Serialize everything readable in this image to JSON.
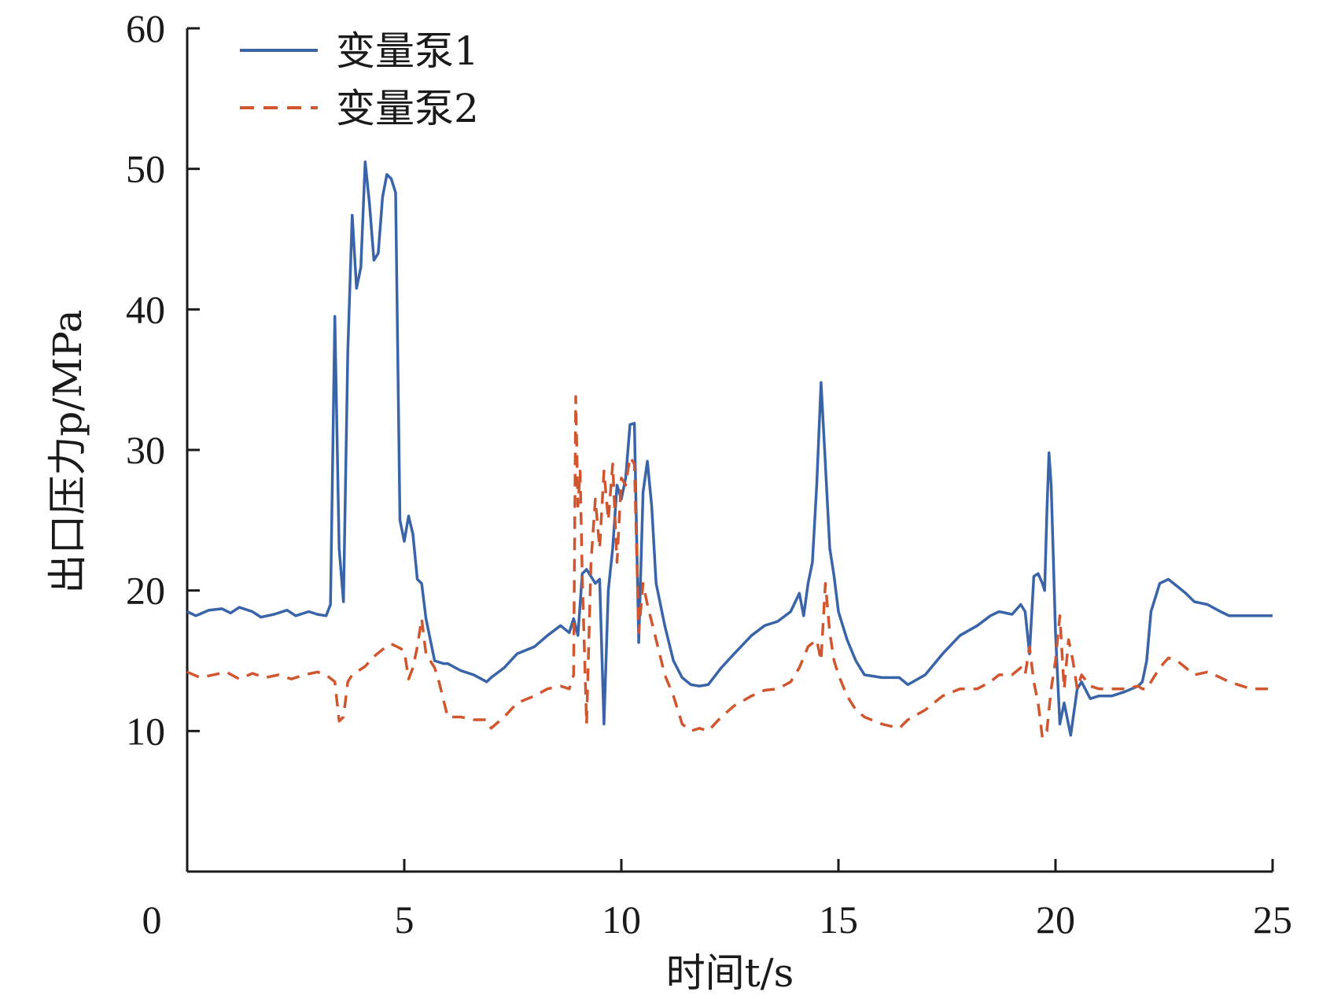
{
  "chart_data": {
    "type": "line",
    "title": "",
    "xlabel": "时间t/s",
    "ylabel": "出口压力p/MPa",
    "xlim": [
      0,
      25
    ],
    "ylim": [
      0,
      60
    ],
    "xticks": [
      "0",
      "5",
      "10",
      "15",
      "20",
      "25"
    ],
    "yticks": [
      "10",
      "20",
      "30",
      "40",
      "50",
      "60"
    ],
    "legend_position": "top-left",
    "grid": false,
    "series": [
      {
        "name": "变量泵1",
        "color": "#3a64a8",
        "dash": "solid",
        "x": [
          0,
          0.2,
          0.5,
          0.8,
          1.0,
          1.2,
          1.5,
          1.7,
          2.0,
          2.3,
          2.5,
          2.8,
          3.0,
          3.2,
          3.3,
          3.4,
          3.5,
          3.6,
          3.7,
          3.8,
          3.9,
          4.0,
          4.1,
          4.2,
          4.3,
          4.4,
          4.5,
          4.6,
          4.7,
          4.8,
          4.9,
          5.0,
          5.1,
          5.2,
          5.3,
          5.4,
          5.5,
          5.6,
          5.7,
          5.9,
          6.0,
          6.3,
          6.6,
          6.9,
          7.0,
          7.3,
          7.6,
          8.0,
          8.3,
          8.6,
          8.8,
          8.9,
          9.0,
          9.1,
          9.2,
          9.3,
          9.4,
          9.5,
          9.6,
          9.7,
          9.8,
          9.9,
          10.0,
          10.1,
          10.2,
          10.3,
          10.4,
          10.5,
          10.6,
          10.7,
          10.8,
          11.0,
          11.2,
          11.4,
          11.6,
          11.8,
          12.0,
          12.3,
          12.6,
          13.0,
          13.3,
          13.6,
          13.9,
          14.1,
          14.2,
          14.3,
          14.4,
          14.5,
          14.6,
          14.7,
          14.8,
          14.9,
          15.0,
          15.2,
          15.4,
          15.6,
          16.0,
          16.4,
          16.6,
          17.0,
          17.4,
          17.8,
          18.2,
          18.5,
          18.7,
          19.0,
          19.2,
          19.3,
          19.4,
          19.5,
          19.6,
          19.7,
          19.75,
          19.8,
          19.85,
          19.9,
          20.0,
          20.1,
          20.2,
          20.35,
          20.5,
          20.6,
          20.8,
          21.0,
          21.3,
          21.6,
          21.9,
          22.0,
          22.1,
          22.2,
          22.4,
          22.6,
          22.8,
          23.0,
          23.2,
          23.5,
          23.8,
          24.0,
          24.5,
          25.0
        ],
        "y": [
          18.5,
          18.2,
          18.6,
          18.7,
          18.4,
          18.8,
          18.5,
          18.1,
          18.3,
          18.6,
          18.2,
          18.5,
          18.3,
          18.2,
          19.0,
          39.5,
          23.0,
          19.2,
          37.0,
          46.7,
          41.5,
          43.0,
          50.5,
          47.5,
          43.5,
          44.0,
          48.0,
          49.6,
          49.3,
          48.3,
          25.0,
          23.5,
          25.3,
          24.0,
          20.8,
          20.5,
          18.0,
          16.5,
          15.0,
          14.8,
          14.8,
          14.3,
          14.0,
          13.5,
          13.8,
          14.5,
          15.5,
          16.0,
          16.8,
          17.5,
          17.0,
          18.0,
          16.8,
          21.2,
          21.5,
          21.0,
          20.5,
          20.8,
          10.5,
          20.0,
          23.0,
          27.5,
          26.5,
          28.0,
          31.8,
          31.9,
          16.3,
          27.0,
          29.2,
          26.0,
          20.5,
          17.5,
          15.0,
          13.8,
          13.3,
          13.2,
          13.3,
          14.5,
          15.5,
          16.8,
          17.5,
          17.8,
          18.5,
          19.8,
          18.2,
          20.5,
          22.0,
          27.5,
          34.8,
          29.0,
          23.0,
          21.0,
          18.5,
          16.5,
          15.0,
          14.0,
          13.8,
          13.8,
          13.3,
          14.0,
          15.5,
          16.8,
          17.5,
          18.2,
          18.5,
          18.3,
          19.0,
          18.5,
          15.5,
          21.0,
          21.2,
          20.5,
          20.0,
          25.5,
          29.8,
          27.5,
          17.0,
          10.5,
          12.0,
          9.7,
          13.0,
          13.5,
          12.3,
          12.5,
          12.5,
          12.8,
          13.2,
          13.5,
          15.0,
          18.5,
          20.5,
          20.8,
          20.3,
          19.8,
          19.2,
          19.0,
          18.5,
          18.2,
          18.2,
          18.2
        ]
      },
      {
        "name": "变量泵2",
        "color": "#d0562f",
        "dash": "dashed",
        "x": [
          0,
          0.3,
          0.6,
          0.9,
          1.2,
          1.5,
          1.8,
          2.1,
          2.4,
          2.7,
          3.0,
          3.2,
          3.4,
          3.5,
          3.6,
          3.7,
          3.8,
          3.9,
          4.1,
          4.3,
          4.5,
          4.7,
          4.9,
          5.0,
          5.1,
          5.2,
          5.3,
          5.4,
          5.5,
          5.6,
          5.7,
          5.8,
          6.0,
          6.3,
          6.6,
          6.9,
          7.0,
          7.3,
          7.6,
          8.0,
          8.3,
          8.6,
          8.8,
          8.9,
          8.95,
          9.0,
          9.05,
          9.1,
          9.2,
          9.3,
          9.4,
          9.5,
          9.6,
          9.7,
          9.8,
          9.9,
          10.0,
          10.1,
          10.2,
          10.3,
          10.4,
          10.5,
          10.6,
          10.8,
          11.0,
          11.2,
          11.4,
          11.6,
          11.8,
          12.0,
          12.3,
          12.6,
          13.0,
          13.3,
          13.6,
          13.9,
          14.1,
          14.3,
          14.5,
          14.6,
          14.7,
          14.8,
          14.9,
          15.0,
          15.2,
          15.4,
          15.6,
          16.0,
          16.4,
          16.6,
          17.0,
          17.4,
          17.8,
          18.2,
          18.5,
          18.7,
          19.0,
          19.2,
          19.3,
          19.4,
          19.5,
          19.6,
          19.7,
          19.8,
          19.9,
          20.0,
          20.1,
          20.2,
          20.3,
          20.4,
          20.5,
          20.6,
          20.8,
          21.0,
          21.3,
          21.6,
          21.9,
          22.0,
          22.1,
          22.2,
          22.4,
          22.6,
          22.8,
          23.0,
          23.2,
          23.5,
          23.8,
          24.0,
          24.5,
          25.0
        ],
        "y": [
          14.2,
          13.8,
          14.0,
          14.2,
          13.7,
          14.1,
          13.8,
          14.0,
          13.7,
          14.0,
          14.2,
          14.0,
          13.5,
          10.7,
          11.0,
          13.5,
          14.0,
          14.2,
          14.6,
          15.3,
          15.8,
          16.2,
          15.9,
          15.7,
          13.7,
          14.5,
          16.0,
          18.0,
          15.5,
          15.0,
          14.5,
          13.5,
          11.0,
          11.0,
          10.8,
          10.8,
          10.2,
          11.0,
          12.0,
          12.5,
          13.0,
          13.2,
          13.0,
          14.0,
          33.8,
          26.0,
          28.5,
          21.0,
          10.5,
          22.0,
          26.5,
          23.0,
          28.5,
          25.0,
          29.0,
          22.0,
          28.0,
          27.5,
          29.5,
          29.0,
          17.0,
          20.5,
          19.0,
          16.5,
          14.0,
          12.5,
          10.5,
          10.0,
          10.2,
          10.0,
          11.0,
          11.8,
          12.5,
          12.9,
          13.0,
          13.5,
          14.5,
          16.0,
          16.5,
          15.0,
          20.5,
          17.0,
          15.0,
          14.0,
          12.5,
          11.5,
          11.0,
          10.5,
          10.2,
          10.8,
          11.5,
          12.5,
          13.0,
          13.0,
          13.5,
          14.0,
          14.0,
          14.5,
          14.0,
          16.0,
          13.5,
          12.0,
          9.5,
          10.0,
          13.0,
          15.0,
          18.2,
          13.0,
          16.5,
          15.0,
          13.0,
          14.0,
          13.2,
          13.0,
          13.0,
          13.0,
          13.2,
          13.0,
          13.0,
          13.5,
          14.5,
          15.2,
          15.0,
          14.5,
          14.0,
          14.2,
          13.8,
          13.5,
          13.0,
          13.0
        ]
      }
    ]
  }
}
